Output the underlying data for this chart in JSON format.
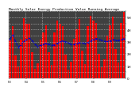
{
  "title": "Monthly Solar Energy Production Value Running Average",
  "bar_values": [
    320,
    430,
    185,
    95,
    315,
    495,
    445,
    445,
    215,
    75,
    125,
    315,
    375,
    435,
    215,
    110,
    375,
    475,
    445,
    425,
    195,
    68,
    138,
    325,
    405,
    485,
    225,
    118,
    425,
    515,
    475,
    455,
    198,
    88,
    158,
    352,
    432,
    505,
    238,
    128,
    452,
    542
  ],
  "running_avg": [
    320,
    355,
    305,
    255,
    275,
    307,
    316,
    329,
    311,
    282,
    262,
    270,
    278,
    288,
    280,
    270,
    274,
    286,
    298,
    308,
    301,
    289,
    279,
    278,
    284,
    294,
    291,
    285,
    294,
    306,
    318,
    326,
    320,
    311,
    303,
    302,
    308,
    316,
    314,
    310,
    316,
    326
  ],
  "n_bars": 42,
  "bar_color": "#FF0000",
  "avg_color": "#0000CC",
  "bg_color": "#FFFFFF",
  "plot_bg": "#404040",
  "ylim": [
    0,
    550
  ],
  "ytick_vals": [
    0,
    50,
    100,
    150,
    200,
    250,
    300,
    350,
    400,
    450,
    500,
    550
  ],
  "ytick_labels": [
    "0",
    "",
    "1H",
    "",
    "2H",
    "",
    "3H",
    "",
    "4H",
    "",
    "5H",
    ""
  ],
  "ylabel_fontsize": 3.0,
  "title_fontsize": 3.2,
  "bar_width": 0.75
}
